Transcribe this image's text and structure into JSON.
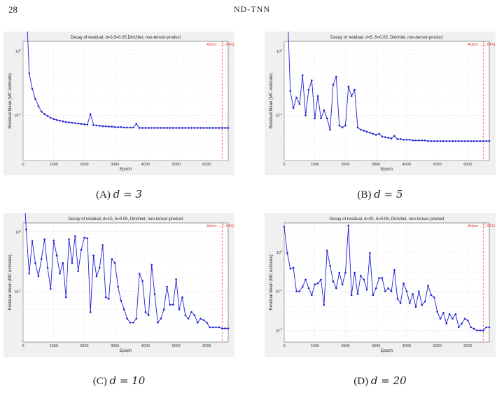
{
  "page": {
    "number": "28",
    "running_head": "ND-TNN"
  },
  "chart_data": [
    {
      "type": "line",
      "caption_label": "(A)",
      "caption_math": "d = 3",
      "title": "Decay of residual, d=3,δ=0.05,Dirichlet, non-tensor-product",
      "xlabel": "Epoch",
      "ylabel": "Residual Mean (MC estimate)",
      "xlim": [
        0,
        6700
      ],
      "xticks": [
        "0",
        "1000",
        "2000",
        "3000",
        "4000",
        "5000",
        "6000"
      ],
      "y_scale": "log",
      "ylim_exp": [
        -1.7,
        0.15
      ],
      "ytick_exps": [
        0,
        -1
      ],
      "switch_epoch": 6500,
      "switch_label": "Adam → L-BFGS",
      "x": [
        0,
        100,
        200,
        300,
        400,
        500,
        600,
        700,
        800,
        900,
        1000,
        1100,
        1200,
        1300,
        1400,
        1500,
        1600,
        1700,
        1800,
        1900,
        2000,
        2100,
        2200,
        2300,
        2400,
        2500,
        2600,
        2700,
        2800,
        2900,
        3000,
        3100,
        3200,
        3300,
        3400,
        3500,
        3600,
        3700,
        3800,
        3900,
        4000,
        4100,
        4200,
        4300,
        4400,
        4500,
        4600,
        4700,
        4800,
        4900,
        5000,
        5100,
        5200,
        5300,
        5400,
        5500,
        5600,
        5700,
        5800,
        5900,
        6000,
        6100,
        6200,
        6300,
        6400,
        6500,
        6600,
        6700
      ],
      "y": [
        10,
        6.5,
        0.45,
        0.26,
        0.18,
        0.14,
        0.115,
        0.105,
        0.098,
        0.092,
        0.088,
        0.085,
        0.083,
        0.081,
        0.079,
        0.078,
        0.077,
        0.076,
        0.075,
        0.074,
        0.073,
        0.072,
        0.105,
        0.071,
        0.07,
        0.069,
        0.068,
        0.068,
        0.067,
        0.067,
        0.066,
        0.066,
        0.066,
        0.065,
        0.065,
        0.065,
        0.065,
        0.074,
        0.064,
        0.064,
        0.064,
        0.064,
        0.064,
        0.064,
        0.064,
        0.064,
        0.064,
        0.064,
        0.064,
        0.064,
        0.064,
        0.064,
        0.064,
        0.064,
        0.064,
        0.064,
        0.064,
        0.064,
        0.064,
        0.064,
        0.064,
        0.064,
        0.064,
        0.064,
        0.064,
        0.064,
        0.064,
        0.064
      ]
    },
    {
      "type": "line",
      "caption_label": "(B)",
      "caption_math": "d = 5",
      "title": "Decay of residual, d=5, δ=0.05, Dirichlet, non-tensor-product",
      "xlabel": "Epoch",
      "ylabel": "Residual Mean (MC estimate)",
      "xlim": [
        0,
        6700
      ],
      "xticks": [
        "0",
        "1000",
        "2000",
        "3000",
        "4000",
        "5000",
        "6000"
      ],
      "y_scale": "log",
      "ylim_exp": [
        -1.7,
        0.15
      ],
      "ytick_exps": [
        0,
        -1
      ],
      "switch_epoch": 6500,
      "switch_label": "Adam → L-BFGS",
      "x": [
        0,
        100,
        200,
        300,
        400,
        500,
        600,
        700,
        800,
        900,
        1000,
        1100,
        1200,
        1300,
        1400,
        1500,
        1600,
        1700,
        1800,
        1900,
        2000,
        2100,
        2200,
        2300,
        2400,
        2500,
        2600,
        2700,
        2800,
        2900,
        3000,
        3100,
        3200,
        3300,
        3400,
        3500,
        3600,
        3700,
        3800,
        3900,
        4000,
        4100,
        4200,
        4300,
        4400,
        4500,
        4600,
        4700,
        4800,
        4900,
        5000,
        5100,
        5200,
        5300,
        5400,
        5500,
        5600,
        5700,
        5800,
        5900,
        6000,
        6100,
        6200,
        6300,
        6400,
        6500,
        6600,
        6700
      ],
      "y": [
        10,
        5.8,
        0.24,
        0.13,
        0.19,
        0.15,
        0.42,
        0.1,
        0.25,
        0.35,
        0.09,
        0.2,
        0.09,
        0.12,
        0.09,
        0.06,
        0.3,
        0.4,
        0.07,
        0.065,
        0.07,
        0.28,
        0.2,
        0.25,
        0.065,
        0.06,
        0.058,
        0.056,
        0.054,
        0.052,
        0.05,
        0.052,
        0.047,
        0.046,
        0.045,
        0.044,
        0.048,
        0.043,
        0.043,
        0.042,
        0.042,
        0.042,
        0.041,
        0.041,
        0.041,
        0.041,
        0.041,
        0.04,
        0.04,
        0.04,
        0.04,
        0.04,
        0.04,
        0.04,
        0.04,
        0.04,
        0.04,
        0.04,
        0.04,
        0.04,
        0.04,
        0.04,
        0.04,
        0.04,
        0.04,
        0.04,
        0.04,
        0.04
      ]
    },
    {
      "type": "line",
      "caption_label": "(C)",
      "caption_math": "d = 10",
      "title": "Decay of residual, d=10, δ=0.05, Dirichlet, non-tensor-product",
      "xlabel": "Epoch",
      "ylabel": "Residual Mean (MC estimate)",
      "xlim": [
        0,
        6700
      ],
      "xticks": [
        "0",
        "1000",
        "2000",
        "3000",
        "4000",
        "5000",
        "6000"
      ],
      "y_scale": "log",
      "ylim_exp": [
        -1.85,
        0.15
      ],
      "ytick_exps": [
        0,
        -1
      ],
      "switch_epoch": 6500,
      "switch_label": "Adam → L-BFGS",
      "x": [
        0,
        100,
        200,
        300,
        400,
        500,
        600,
        700,
        800,
        900,
        1000,
        1100,
        1200,
        1300,
        1400,
        1500,
        1600,
        1700,
        1800,
        1900,
        2000,
        2100,
        2200,
        2300,
        2400,
        2500,
        2600,
        2700,
        2800,
        2900,
        3000,
        3100,
        3200,
        3300,
        3400,
        3500,
        3600,
        3700,
        3800,
        3900,
        4000,
        4100,
        4200,
        4300,
        4400,
        4500,
        4600,
        4700,
        4800,
        4900,
        5000,
        5100,
        5200,
        5300,
        5400,
        5500,
        5600,
        5700,
        5800,
        5900,
        6000,
        6100,
        6200,
        6300,
        6400,
        6500,
        6600,
        6700
      ],
      "y": [
        10,
        1.1,
        0.2,
        0.7,
        0.3,
        0.18,
        0.35,
        0.75,
        0.25,
        0.11,
        0.72,
        0.4,
        0.2,
        0.3,
        0.08,
        0.75,
        0.3,
        0.85,
        0.22,
        0.5,
        0.8,
        0.78,
        0.045,
        0.4,
        0.18,
        0.25,
        0.6,
        0.08,
        0.075,
        0.35,
        0.3,
        0.12,
        0.07,
        0.05,
        0.035,
        0.03,
        0.03,
        0.035,
        0.2,
        0.15,
        0.045,
        0.04,
        0.28,
        0.09,
        0.03,
        0.035,
        0.05,
        0.12,
        0.06,
        0.06,
        0.16,
        0.05,
        0.08,
        0.04,
        0.035,
        0.045,
        0.04,
        0.03,
        0.035,
        0.033,
        0.03,
        0.025,
        0.025,
        0.025,
        0.025,
        0.024,
        0.024,
        0.024
      ]
    },
    {
      "type": "line",
      "caption_label": "(D)",
      "caption_math": "d = 20",
      "title": "Decay of residual, d=20, δ=0.05, Dirichlet, non-tensor-product",
      "xlabel": "Epoch",
      "ylabel": "Residual Mean (MC estimate)",
      "xlim": [
        0,
        6700
      ],
      "xticks": [
        "0",
        "1000",
        "2000",
        "3000",
        "4000",
        "5000",
        "6000"
      ],
      "y_scale": "log",
      "ylim_exp": [
        -2.3,
        0.75
      ],
      "ytick_exps": [
        0,
        -1,
        -2
      ],
      "switch_epoch": 6500,
      "switch_label": "Adam → L-BFGS",
      "x": [
        0,
        100,
        200,
        300,
        400,
        500,
        600,
        700,
        800,
        900,
        1000,
        1100,
        1200,
        1300,
        1400,
        1500,
        1600,
        1700,
        1800,
        1900,
        2000,
        2100,
        2200,
        2300,
        2400,
        2500,
        2600,
        2700,
        2800,
        2900,
        3000,
        3100,
        3200,
        3300,
        3400,
        3500,
        3600,
        3700,
        3800,
        3900,
        4000,
        4100,
        4200,
        4300,
        4400,
        4500,
        4600,
        4700,
        4800,
        4900,
        5000,
        5100,
        5200,
        5300,
        5400,
        5500,
        5600,
        5700,
        5800,
        5900,
        6000,
        6100,
        6200,
        6300,
        6400,
        6500,
        6600,
        6700
      ],
      "y": [
        4.5,
        0.95,
        0.38,
        0.4,
        0.1,
        0.1,
        0.13,
        0.2,
        0.12,
        0.08,
        0.15,
        0.16,
        0.2,
        0.045,
        1.1,
        0.45,
        0.18,
        0.12,
        0.3,
        0.15,
        0.3,
        4.8,
        0.08,
        0.3,
        0.085,
        0.25,
        0.2,
        0.11,
        0.95,
        0.08,
        0.12,
        0.22,
        0.22,
        0.1,
        0.12,
        0.1,
        0.35,
        0.065,
        0.05,
        0.16,
        0.1,
        0.05,
        0.085,
        0.04,
        0.1,
        0.045,
        0.055,
        0.14,
        0.08,
        0.07,
        0.03,
        0.02,
        0.028,
        0.015,
        0.026,
        0.02,
        0.026,
        0.012,
        0.015,
        0.02,
        0.018,
        0.012,
        0.011,
        0.01,
        0.01,
        0.01,
        0.012,
        0.012
      ]
    }
  ]
}
